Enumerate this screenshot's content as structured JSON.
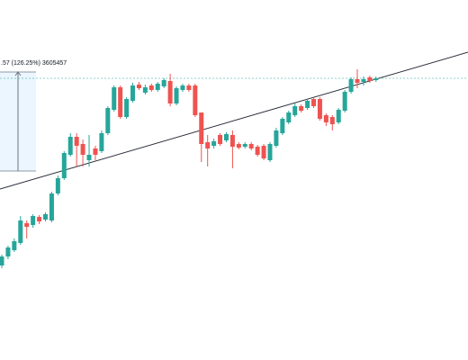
{
  "chart_data": {
    "type": "candlestick",
    "annotation": ".57 (126.25%) 3605457",
    "up_color": "#26a69a",
    "down_color": "#ef5350",
    "ylim": [
      0,
      400
    ],
    "open": [
      105,
      115,
      122,
      130,
      152,
      150,
      159,
      156,
      155,
      185,
      202,
      228,
      248,
      240,
      222,
      235,
      232,
      252,
      278,
      303,
      270,
      288,
      306,
      297,
      305,
      300,
      304,
      310,
      285,
      300,
      305,
      305,
      275,
      242,
      238,
      250,
      244,
      250,
      240,
      237,
      240,
      237,
      238,
      222,
      238,
      252,
      264,
      272,
      282,
      280,
      290,
      290,
      272,
      270,
      264,
      277,
      298,
      312,
      309,
      314,
      311
    ],
    "high": [
      117,
      127,
      135,
      160,
      155,
      162,
      161,
      164,
      187,
      205,
      232,
      252,
      252,
      245,
      250,
      238,
      255,
      282,
      305,
      305,
      292,
      308,
      309,
      306,
      307,
      309,
      313,
      318,
      304,
      307,
      307,
      307,
      275,
      250,
      246,
      252,
      253,
      255,
      242,
      242,
      242,
      239,
      240,
      242,
      258,
      270,
      277,
      285,
      284,
      290,
      292,
      292,
      274,
      272,
      280,
      300,
      314,
      323,
      315,
      316,
      315
    ],
    "low": [
      102,
      112,
      120,
      128,
      135,
      147,
      151,
      154,
      153,
      183,
      200,
      226,
      215,
      215,
      215,
      222,
      230,
      250,
      276,
      268,
      268,
      286,
      300,
      295,
      298,
      298,
      302,
      282,
      283,
      298,
      298,
      270,
      220,
      215,
      235,
      238,
      242,
      213,
      234,
      235,
      233,
      226,
      222,
      220,
      236,
      250,
      262,
      270,
      275,
      278,
      280,
      266,
      260,
      255,
      262,
      275,
      296,
      302,
      305,
      308,
      309
    ],
    "close": [
      115,
      125,
      132,
      155,
      148,
      160,
      154,
      162,
      185,
      202,
      230,
      248,
      238,
      228,
      228,
      228,
      252,
      280,
      303,
      270,
      290,
      305,
      302,
      303,
      300,
      307,
      311,
      285,
      302,
      305,
      300,
      272,
      240,
      235,
      243,
      240,
      251,
      237,
      236,
      240,
      235,
      228,
      224,
      240,
      255,
      268,
      275,
      282,
      277,
      288,
      282,
      268,
      264,
      262,
      278,
      298,
      312,
      308,
      312,
      310,
      313
    ]
  }
}
